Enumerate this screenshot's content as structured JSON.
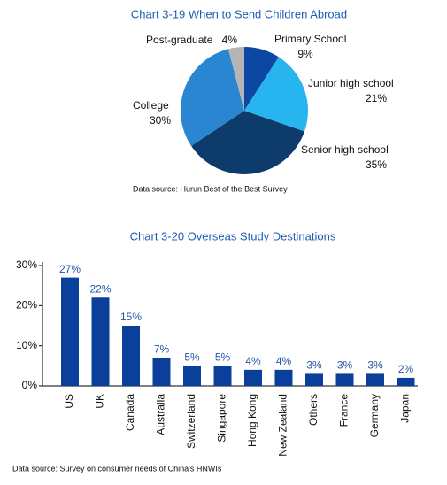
{
  "chart_data": [
    {
      "type": "pie",
      "title": "Chart 3-19 When to Send Children Abroad",
      "categories": [
        "Primary School",
        "Junior high school",
        "Senior high school",
        "College",
        "Post-graduate"
      ],
      "values": [
        9,
        21,
        35,
        30,
        4
      ],
      "value_labels": [
        "9%",
        "21%",
        "35%",
        "30%",
        "4%"
      ],
      "colors": [
        "#0b47a3",
        "#28b5ef",
        "#0d3c6c",
        "#2a86d1",
        "#b5b5b5"
      ],
      "source": "Data source: Hurun Best of the Best Survey"
    },
    {
      "type": "bar",
      "title": "Chart 3-20 Overseas Study Destinations",
      "categories": [
        "US",
        "UK",
        "Canada",
        "Australia",
        "Switzerland",
        "Singapore",
        "Hong Kong",
        "New Zealand",
        "Others",
        "France",
        "Germany",
        "Japan"
      ],
      "values": [
        27,
        22,
        15,
        7,
        5,
        5,
        4,
        4,
        3,
        3,
        3,
        2
      ],
      "value_labels": [
        "27%",
        "22%",
        "15%",
        "7%",
        "5%",
        "5%",
        "4%",
        "4%",
        "3%",
        "3%",
        "3%",
        "2%"
      ],
      "color": "#0a3f9b",
      "ylim": [
        0,
        30
      ],
      "yticks": [
        {
          "value": 0,
          "label": "0%"
        },
        {
          "value": 10,
          "label": "10%"
        },
        {
          "value": 20,
          "label": "20%"
        },
        {
          "value": 30,
          "label": "30%"
        }
      ],
      "source": "Data source: Survey on consumer needs of China's HNWIs"
    }
  ]
}
